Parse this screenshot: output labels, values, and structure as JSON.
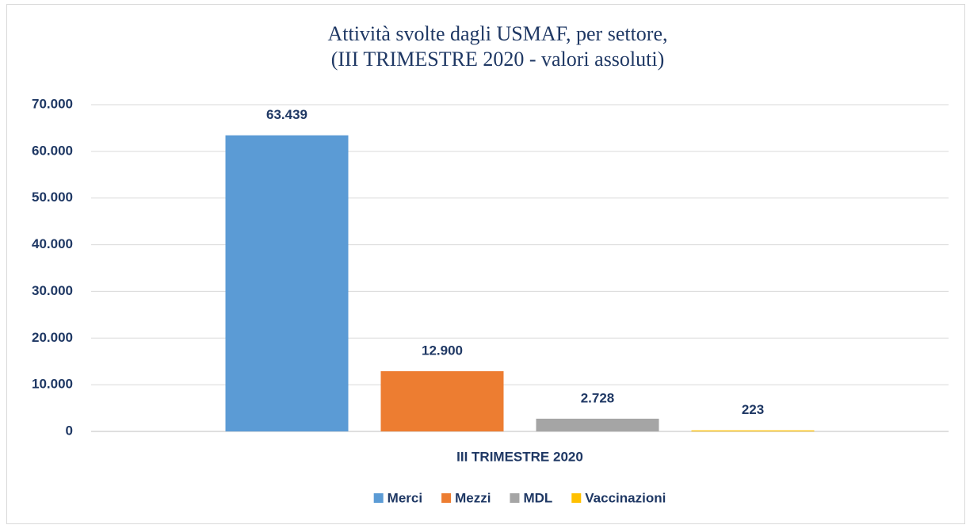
{
  "chart_data": {
    "type": "bar",
    "title": "Attività svolte dagli USMAF, per settore,",
    "subtitle": "(III TRIMESTRE 2020 - valori assoluti)",
    "categories": [
      "III TRIMESTRE 2020"
    ],
    "series": [
      {
        "name": "Merci",
        "color": "#5b9bd5",
        "values": [
          63439
        ],
        "value_labels": [
          "63.439"
        ]
      },
      {
        "name": "Mezzi",
        "color": "#ed7d31",
        "values": [
          12900
        ],
        "value_labels": [
          "12.900"
        ]
      },
      {
        "name": "MDL",
        "color": "#a5a5a5",
        "values": [
          2728
        ],
        "value_labels": [
          "2.728"
        ]
      },
      {
        "name": "Vaccinazioni",
        "color": "#ffc000",
        "values": [
          223
        ],
        "value_labels": [
          "223"
        ]
      }
    ],
    "ylim": [
      0,
      70000
    ],
    "yticks": [
      0,
      {
        "value": 10000,
        "label": "10.000"
      },
      {
        "value": 20000,
        "label": "20.000"
      },
      {
        "value": 30000,
        "label": "30.000"
      },
      {
        "value": 40000,
        "label": "40.000"
      },
      {
        "value": 50000,
        "label": "50.000"
      },
      {
        "value": 60000,
        "label": "60.000"
      },
      {
        "value": 70000,
        "label": "70.000"
      }
    ],
    "grid": true,
    "legend": "bottom"
  }
}
